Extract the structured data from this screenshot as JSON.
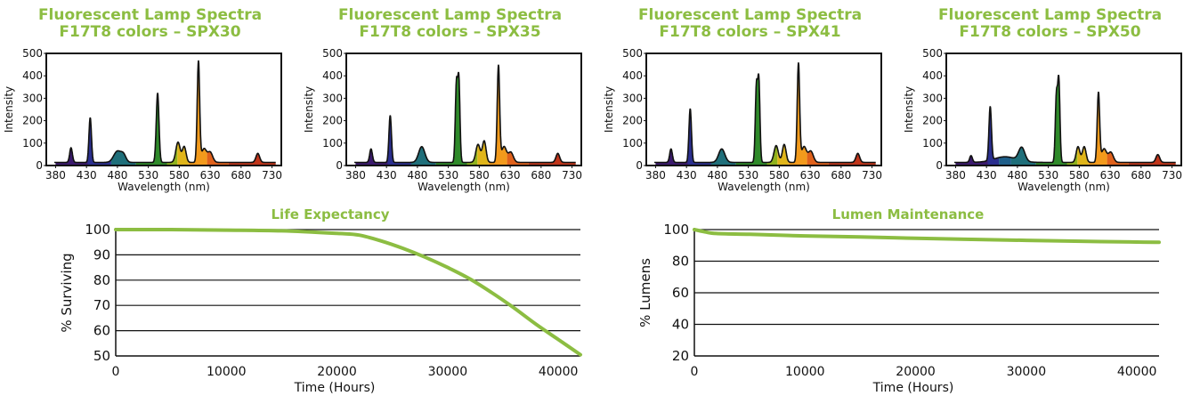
{
  "chart_data": [
    {
      "type": "area",
      "title_line1": "Fluorescent Lamp Spectra",
      "title_line2": "F17T8 colors – SPX30",
      "xlabel": "Wavelength (nm)",
      "ylabel": "Intensity",
      "xlim": [
        365,
        745
      ],
      "ylim": [
        0,
        500
      ],
      "xticks": [
        380,
        430,
        480,
        530,
        580,
        630,
        680,
        730
      ],
      "yticks": [
        0,
        100,
        200,
        300,
        400,
        500
      ],
      "peaks": [
        [
          405,
          65,
          2.2
        ],
        [
          436,
          200,
          2.0
        ],
        [
          480,
          50,
          6
        ],
        [
          490,
          30,
          4
        ],
        [
          545,
          310,
          2.2
        ],
        [
          578,
          90,
          3.5
        ],
        [
          588,
          70,
          3
        ],
        [
          611,
          450,
          2.0
        ],
        [
          620,
          60,
          4
        ],
        [
          630,
          45,
          4
        ],
        [
          707,
          40,
          3
        ]
      ],
      "baseline": 14,
      "color_bands": [
        [
          380,
          "#3b1a6e"
        ],
        [
          432,
          "#2b2f8f"
        ],
        [
          470,
          "#1f6f7a"
        ],
        [
          510,
          "#2f8a2a"
        ],
        [
          560,
          "#8fb21d"
        ],
        [
          577,
          "#e0b51a"
        ],
        [
          595,
          "#f29a1c"
        ],
        [
          625,
          "#e0611b"
        ],
        [
          660,
          "#c0351a"
        ]
      ]
    },
    {
      "type": "area",
      "title_line1": "Fluorescent Lamp Spectra",
      "title_line2": "F17T8 colors – SPX35",
      "xlabel": "Wavelength (nm)",
      "ylabel": "Intensity",
      "xlim": [
        365,
        745
      ],
      "ylim": [
        0,
        500
      ],
      "xticks": [
        380,
        430,
        480,
        530,
        580,
        630,
        680,
        730
      ],
      "yticks": [
        0,
        100,
        200,
        300,
        400,
        500
      ],
      "peaks": [
        [
          405,
          60,
          2.2
        ],
        [
          436,
          210,
          2.0
        ],
        [
          487,
          70,
          5
        ],
        [
          543,
          340,
          1.8
        ],
        [
          547,
          365,
          1.8
        ],
        [
          578,
          80,
          3.5
        ],
        [
          588,
          95,
          3
        ],
        [
          611,
          430,
          2.0
        ],
        [
          620,
          70,
          4
        ],
        [
          631,
          45,
          4
        ],
        [
          707,
          40,
          3
        ]
      ],
      "baseline": 14,
      "color_bands": [
        [
          380,
          "#3b1a6e"
        ],
        [
          432,
          "#2b2f8f"
        ],
        [
          470,
          "#1f6f7a"
        ],
        [
          510,
          "#2f8a2a"
        ],
        [
          560,
          "#8fb21d"
        ],
        [
          577,
          "#e0b51a"
        ],
        [
          595,
          "#f29a1c"
        ],
        [
          625,
          "#e0611b"
        ],
        [
          660,
          "#c0351a"
        ]
      ]
    },
    {
      "type": "area",
      "title_line1": "Fluorescent Lamp Spectra",
      "title_line2": "F17T8 colors – SPX41",
      "xlabel": "Wavelength (nm)",
      "ylabel": "Intensity",
      "xlim": [
        365,
        745
      ],
      "ylim": [
        0,
        500
      ],
      "xticks": [
        380,
        430,
        480,
        530,
        580,
        630,
        680,
        730
      ],
      "yticks": [
        0,
        100,
        200,
        300,
        400,
        500
      ],
      "peaks": [
        [
          405,
          60,
          2.2
        ],
        [
          436,
          240,
          2.0
        ],
        [
          487,
          60,
          5
        ],
        [
          543,
          330,
          1.8
        ],
        [
          547,
          360,
          1.8
        ],
        [
          575,
          75,
          3.5
        ],
        [
          588,
          80,
          3
        ],
        [
          611,
          440,
          2.0
        ],
        [
          620,
          70,
          4
        ],
        [
          631,
          50,
          4
        ],
        [
          707,
          40,
          3
        ]
      ],
      "baseline": 14,
      "color_bands": [
        [
          380,
          "#3b1a6e"
        ],
        [
          432,
          "#2b2f8f"
        ],
        [
          470,
          "#1f6f7a"
        ],
        [
          510,
          "#2f8a2a"
        ],
        [
          560,
          "#8fb21d"
        ],
        [
          577,
          "#e0b51a"
        ],
        [
          595,
          "#f29a1c"
        ],
        [
          625,
          "#e0611b"
        ],
        [
          660,
          "#c0351a"
        ]
      ]
    },
    {
      "type": "area",
      "title_line1": "Fluorescent Lamp Spectra",
      "title_line2": "F17T8 colors – SPX50",
      "xlabel": "Wavelength (nm)",
      "ylabel": "Intensity",
      "xlim": [
        365,
        745
      ],
      "ylim": [
        0,
        500
      ],
      "xticks": [
        380,
        430,
        480,
        530,
        580,
        630,
        680,
        730
      ],
      "yticks": [
        0,
        100,
        200,
        300,
        400,
        500
      ],
      "peaks": [
        [
          405,
          30,
          2.2
        ],
        [
          436,
          240,
          2.0
        ],
        [
          460,
          25,
          18
        ],
        [
          487,
          60,
          5
        ],
        [
          543,
          290,
          1.8
        ],
        [
          547,
          360,
          1.8
        ],
        [
          578,
          70,
          3
        ],
        [
          588,
          70,
          3
        ],
        [
          611,
          310,
          2.0
        ],
        [
          620,
          60,
          4
        ],
        [
          631,
          45,
          4
        ],
        [
          707,
          35,
          3
        ]
      ],
      "baseline": 14,
      "color_bands": [
        [
          380,
          "#3b1a6e"
        ],
        [
          432,
          "#2b2f8f"
        ],
        [
          450,
          "#1f5f8a"
        ],
        [
          470,
          "#1f6f7a"
        ],
        [
          510,
          "#2f8a2a"
        ],
        [
          560,
          "#8fb21d"
        ],
        [
          577,
          "#e0b51a"
        ],
        [
          595,
          "#f29a1c"
        ],
        [
          625,
          "#e0611b"
        ],
        [
          660,
          "#c0351a"
        ]
      ]
    },
    {
      "type": "line",
      "title": "Life Expectancy",
      "xlabel": "Time (Hours)",
      "ylabel": "% Surviving",
      "xlim": [
        0,
        42000
      ],
      "ylim": [
        50,
        100
      ],
      "xticks": [
        0,
        10000,
        20000,
        30000,
        40000
      ],
      "yticks": [
        50,
        60,
        70,
        80,
        90,
        100
      ],
      "series": [
        {
          "x": [
            0,
            5000,
            10000,
            15000,
            20000,
            22000,
            24000,
            26000,
            28000,
            30000,
            32000,
            34000,
            36000,
            38000,
            40000,
            42000
          ],
          "values": [
            100,
            100,
            99.8,
            99.5,
            98.5,
            97.8,
            95.5,
            92.5,
            89.0,
            85.0,
            80.5,
            75.0,
            69.0,
            62.5,
            56.5,
            50.5
          ]
        }
      ],
      "line_color": "#8cbd42"
    },
    {
      "type": "line",
      "title": "Lumen Maintenance",
      "xlabel": "Time (Hours)",
      "ylabel": "% Lumens",
      "xlim": [
        0,
        42000
      ],
      "ylim": [
        20,
        100
      ],
      "xticks": [
        0,
        10000,
        20000,
        30000,
        40000
      ],
      "yticks": [
        20,
        40,
        60,
        80,
        100
      ],
      "series": [
        {
          "x": [
            0,
            1000,
            2000,
            5000,
            10000,
            15000,
            20000,
            25000,
            30000,
            35000,
            40000,
            42000
          ],
          "values": [
            100,
            98.5,
            97.5,
            97,
            96,
            95.3,
            94.5,
            93.8,
            93.2,
            92.6,
            92.1,
            92.0
          ]
        }
      ],
      "line_color": "#8cbd42"
    }
  ]
}
